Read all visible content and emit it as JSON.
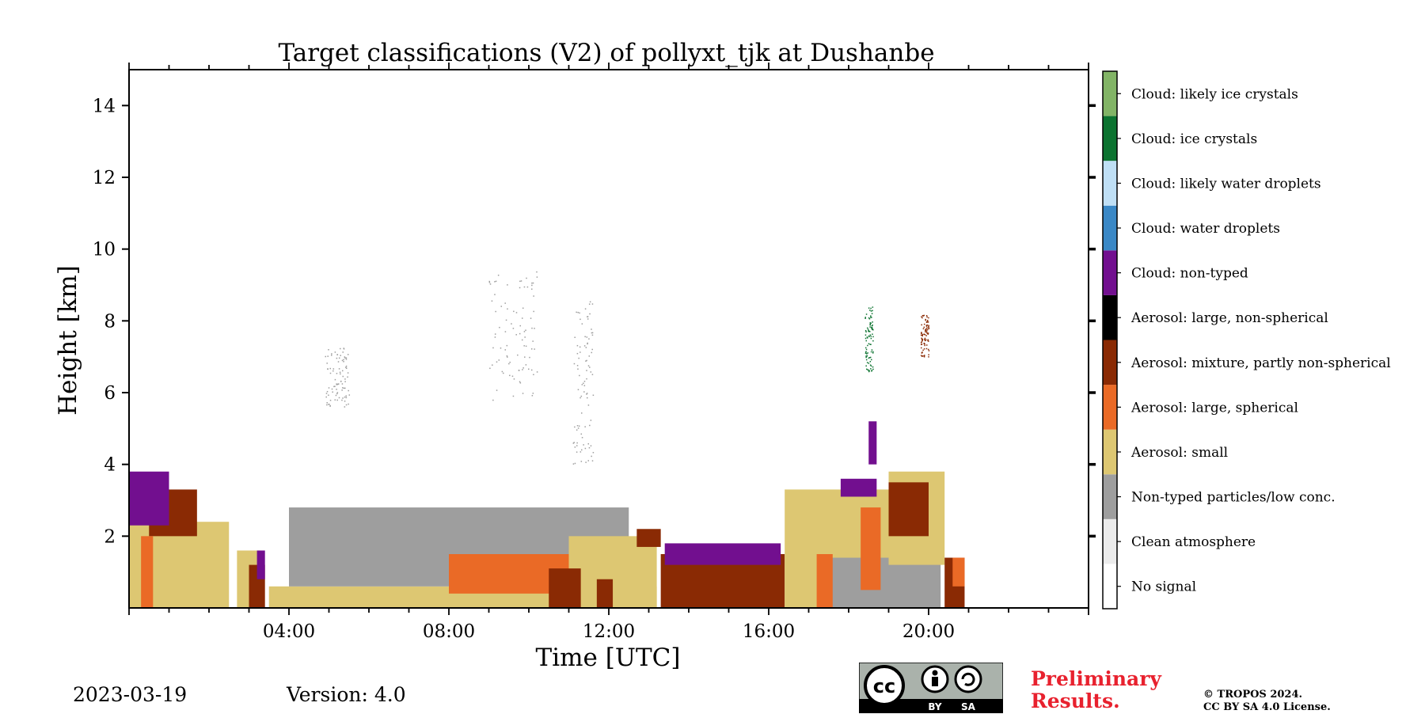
{
  "chart_data": {
    "type": "heatmap",
    "title": "Target classifications (V2) of pollyxt_tjk at Dushanbe",
    "xlabel": "Time [UTC]",
    "ylabel": "Height [km]",
    "xlim_hours": [
      0,
      24
    ],
    "ylim_km": [
      0,
      15
    ],
    "x_ticks": [
      {
        "hour": 4,
        "label": "04:00"
      },
      {
        "hour": 8,
        "label": "08:00"
      },
      {
        "hour": 12,
        "label": "12:00"
      },
      {
        "hour": 16,
        "label": "16:00"
      },
      {
        "hour": 20,
        "label": "20:00"
      }
    ],
    "y_ticks": [
      {
        "km": 2,
        "label": "2"
      },
      {
        "km": 4,
        "label": "4"
      },
      {
        "km": 6,
        "label": "6"
      },
      {
        "km": 8,
        "label": "8"
      },
      {
        "km": 10,
        "label": "10"
      },
      {
        "km": 12,
        "label": "12"
      },
      {
        "km": 14,
        "label": "14"
      }
    ],
    "classes": [
      {
        "id": 0,
        "label": "No signal",
        "color": "#ffffff"
      },
      {
        "id": 1,
        "label": "Clean atmosphere",
        "color": "#ececec"
      },
      {
        "id": 2,
        "label": "Non-typed particles/low conc.",
        "color": "#9e9e9e"
      },
      {
        "id": 3,
        "label": "Aerosol: small",
        "color": "#ddc772"
      },
      {
        "id": 4,
        "label": "Aerosol: large, spherical",
        "color": "#ea6a26"
      },
      {
        "id": 5,
        "label": "Aerosol: mixture, partly non-spherical",
        "color": "#8a2a04"
      },
      {
        "id": 6,
        "label": "Aerosol: large, non-spherical",
        "color": "#000000"
      },
      {
        "id": 7,
        "label": "Cloud: non-typed",
        "color": "#720f8f"
      },
      {
        "id": 8,
        "label": "Cloud: water droplets",
        "color": "#3a88c6"
      },
      {
        "id": 9,
        "label": "Cloud: likely water droplets",
        "color": "#bfdff5"
      },
      {
        "id": 10,
        "label": "Cloud: ice crystals",
        "color": "#0c7330"
      },
      {
        "id": 11,
        "label": "Cloud: likely ice crystals",
        "color": "#82b466"
      }
    ],
    "regions": [
      {
        "class": 3,
        "t0": 0.0,
        "t1": 2.5,
        "h0": 0.0,
        "h1": 2.4
      },
      {
        "class": 5,
        "t0": 0.5,
        "t1": 1.7,
        "h0": 2.0,
        "h1": 3.3
      },
      {
        "class": 4,
        "t0": 0.3,
        "t1": 0.6,
        "h0": 0.0,
        "h1": 2.0
      },
      {
        "class": 7,
        "t0": 0.0,
        "t1": 1.0,
        "h0": 2.3,
        "h1": 3.8
      },
      {
        "class": 3,
        "t0": 2.7,
        "t1": 3.3,
        "h0": 0.0,
        "h1": 1.6
      },
      {
        "class": 5,
        "t0": 3.0,
        "t1": 3.4,
        "h0": 0.0,
        "h1": 1.2
      },
      {
        "class": 7,
        "t0": 3.2,
        "t1": 3.4,
        "h0": 0.8,
        "h1": 1.6
      },
      {
        "class": 3,
        "t0": 3.5,
        "t1": 13.2,
        "h0": 0.0,
        "h1": 0.6
      },
      {
        "class": 2,
        "t0": 4.0,
        "t1": 12.5,
        "h0": 0.6,
        "h1": 2.8
      },
      {
        "class": 4,
        "t0": 8.0,
        "t1": 13.0,
        "h0": 0.4,
        "h1": 1.5
      },
      {
        "class": 3,
        "t0": 11.0,
        "t1": 13.2,
        "h0": 0.0,
        "h1": 2.0
      },
      {
        "class": 5,
        "t0": 10.5,
        "t1": 11.3,
        "h0": 0.0,
        "h1": 1.1
      },
      {
        "class": 5,
        "t0": 11.7,
        "t1": 12.1,
        "h0": 0.0,
        "h1": 0.8
      },
      {
        "class": 5,
        "t0": 12.7,
        "t1": 13.3,
        "h0": 1.7,
        "h1": 2.2
      },
      {
        "class": 5,
        "t0": 13.3,
        "t1": 16.4,
        "h0": 0.0,
        "h1": 1.5
      },
      {
        "class": 7,
        "t0": 13.4,
        "t1": 16.3,
        "h0": 1.2,
        "h1": 1.8
      },
      {
        "class": 3,
        "t0": 16.4,
        "t1": 19.0,
        "h0": 0.0,
        "h1": 3.3
      },
      {
        "class": 2,
        "t0": 17.5,
        "t1": 20.3,
        "h0": 0.0,
        "h1": 1.4
      },
      {
        "class": 3,
        "t0": 19.0,
        "t1": 20.4,
        "h0": 1.2,
        "h1": 3.8
      },
      {
        "class": 5,
        "t0": 19.0,
        "t1": 20.0,
        "h0": 2.0,
        "h1": 3.5
      },
      {
        "class": 4,
        "t0": 17.2,
        "t1": 17.6,
        "h0": 0.0,
        "h1": 1.5
      },
      {
        "class": 4,
        "t0": 18.3,
        "t1": 18.8,
        "h0": 0.5,
        "h1": 2.8
      },
      {
        "class": 7,
        "t0": 17.8,
        "t1": 18.7,
        "h0": 3.1,
        "h1": 3.6
      },
      {
        "class": 7,
        "t0": 18.5,
        "t1": 18.7,
        "h0": 4.0,
        "h1": 5.2
      },
      {
        "class": 5,
        "t0": 20.4,
        "t1": 20.9,
        "h0": 0.0,
        "h1": 1.4
      },
      {
        "class": 4,
        "t0": 20.6,
        "t1": 20.9,
        "h0": 0.6,
        "h1": 1.4
      }
    ],
    "sparse_plumes": [
      {
        "class": 2,
        "t0": 9.0,
        "t1": 10.2,
        "h0": 5.8,
        "h1": 9.4
      },
      {
        "class": 2,
        "t0": 11.1,
        "t1": 11.6,
        "h0": 4.0,
        "h1": 8.6
      },
      {
        "class": 2,
        "t0": 4.9,
        "t1": 5.5,
        "h0": 5.6,
        "h1": 7.3
      },
      {
        "class": 10,
        "t0": 18.4,
        "t1": 18.6,
        "h0": 6.6,
        "h1": 8.4
      },
      {
        "class": 5,
        "t0": 19.8,
        "t1": 20.0,
        "h0": 7.0,
        "h1": 8.2
      }
    ]
  },
  "footer": {
    "date": "2023-03-19",
    "version": "Version: 4.0",
    "cc_text": "cc",
    "license_by": "BY",
    "license_sa": "SA",
    "preliminary_line1": "Preliminary",
    "preliminary_line2": "Results.",
    "copyright_line1": "© TROPOS 2024.",
    "copyright_line2": "CC BY SA 4.0 License."
  }
}
